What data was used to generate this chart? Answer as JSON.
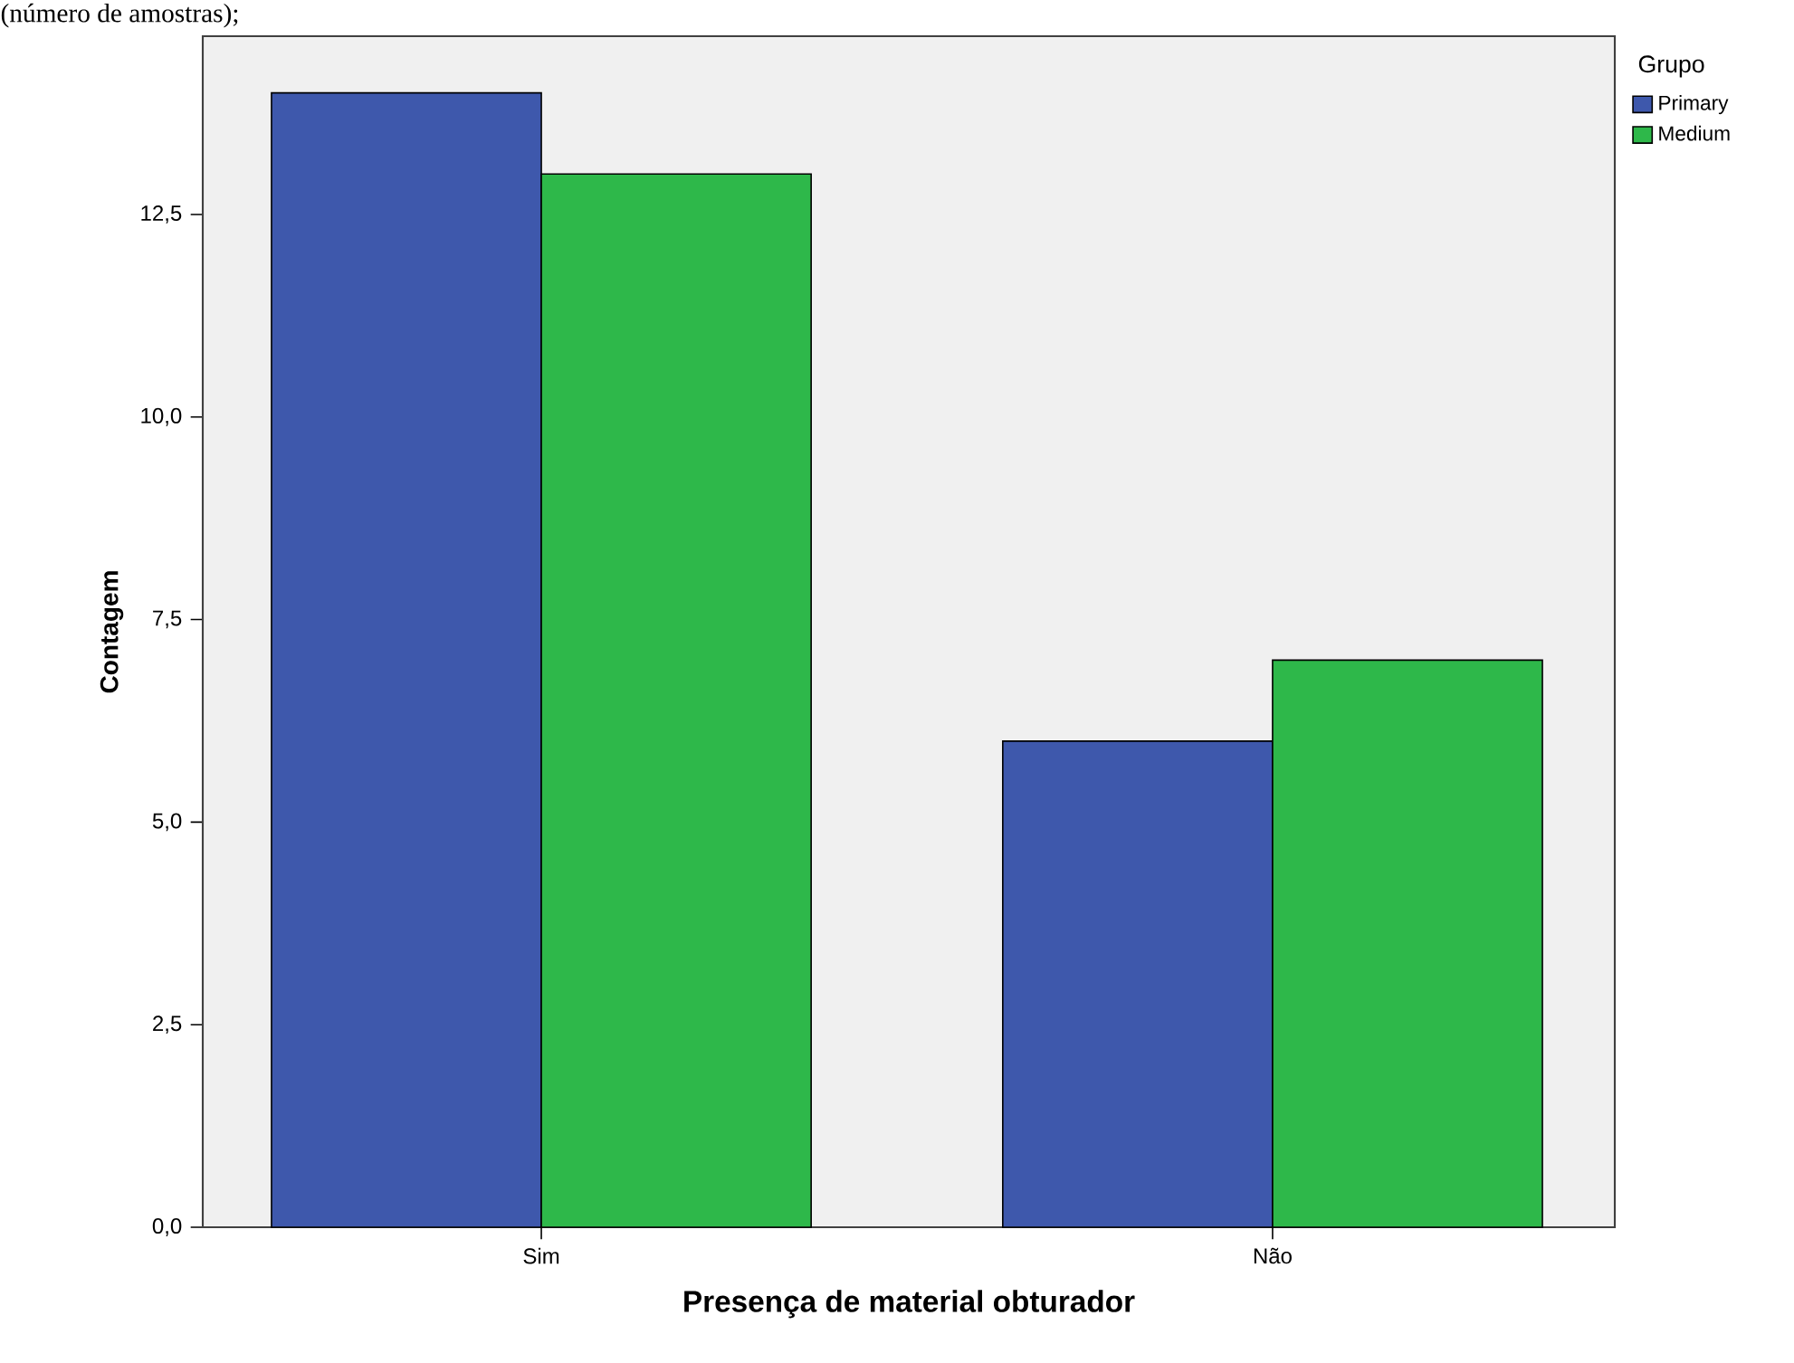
{
  "chart_data": {
    "type": "bar",
    "annotations": [
      "(número de amostras);"
    ],
    "xlabel": "Presença de material obturador",
    "ylabel": "Contagem",
    "legend_title": "Grupo",
    "categories": [
      "Sim",
      "Não"
    ],
    "series": [
      {
        "name": "Primary",
        "color": "#3e58ac",
        "values": [
          14,
          6
        ]
      },
      {
        "name": "Medium",
        "color": "#2eb84a",
        "values": [
          13,
          7
        ]
      }
    ],
    "ylim": [
      0,
      14.7
    ],
    "yticks": [
      {
        "value": 0,
        "label": "0,0"
      },
      {
        "value": 2.5,
        "label": "2,5"
      },
      {
        "value": 5,
        "label": "5,0"
      },
      {
        "value": 7.5,
        "label": "7,5"
      },
      {
        "value": 10,
        "label": "10,0"
      },
      {
        "value": 12.5,
        "label": "12,5"
      }
    ],
    "grid": false,
    "legend": "right"
  }
}
